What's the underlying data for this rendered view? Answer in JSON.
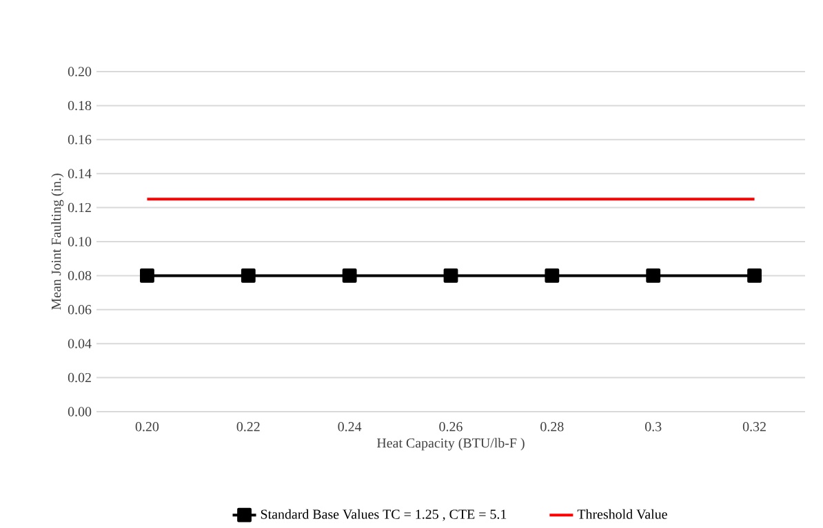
{
  "chart_data": {
    "type": "line",
    "xlabel": "Heat Capacity (BTU/lb-F )",
    "ylabel": "Mean Joint Faulting (in.)",
    "categories": [
      "0.20",
      "0.22",
      "0.24",
      "0.26",
      "0.28",
      "0.3",
      "0.32"
    ],
    "series": [
      {
        "name": "Standard Base Values TC = 1.25 , CTE = 5.1",
        "color": "#000000",
        "marker": "square",
        "values": [
          0.08,
          0.08,
          0.08,
          0.08,
          0.08,
          0.08,
          0.08
        ]
      },
      {
        "name": "Threshold Value",
        "color": "#ff0000",
        "marker": "none",
        "values": [
          0.125,
          0.125,
          0.125,
          0.125,
          0.125,
          0.125,
          0.125
        ]
      }
    ],
    "ylim": [
      0,
      0.2
    ],
    "yticks": [
      {
        "value": 0,
        "label": "0.00"
      },
      {
        "value": 0.02,
        "label": "0.02"
      },
      {
        "value": 0.04,
        "label": "0.04"
      },
      {
        "value": 0.06,
        "label": "0.06"
      },
      {
        "value": 0.08,
        "label": "0.08"
      },
      {
        "value": 0.1,
        "label": "0.10"
      },
      {
        "value": 0.12,
        "label": "0.12"
      },
      {
        "value": 0.14,
        "label": "0.14"
      },
      {
        "value": 0.16,
        "label": "0.16"
      },
      {
        "value": 0.18,
        "label": "0.18"
      },
      {
        "value": 0.2,
        "label": "0.20"
      }
    ],
    "grid": "y",
    "legend": "bottom"
  }
}
